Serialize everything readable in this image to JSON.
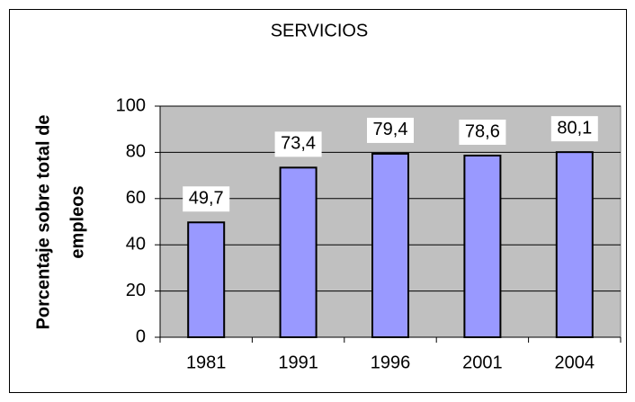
{
  "chart_data": {
    "type": "bar",
    "title": "SERVICIOS",
    "ylabel": [
      "Porcentaje sobre total de",
      "empleos"
    ],
    "categories": [
      "1981",
      "1991",
      "1996",
      "2001",
      "2004"
    ],
    "values": [
      49.7,
      73.4,
      79.4,
      78.6,
      80.1
    ],
    "value_labels": [
      "49,7",
      "73,4",
      "79,4",
      "78,6",
      "80,1"
    ],
    "color": "#9999ff",
    "ylim": [
      0,
      100
    ],
    "yticks": [
      0,
      20,
      40,
      60,
      80,
      100
    ],
    "grid": true
  }
}
